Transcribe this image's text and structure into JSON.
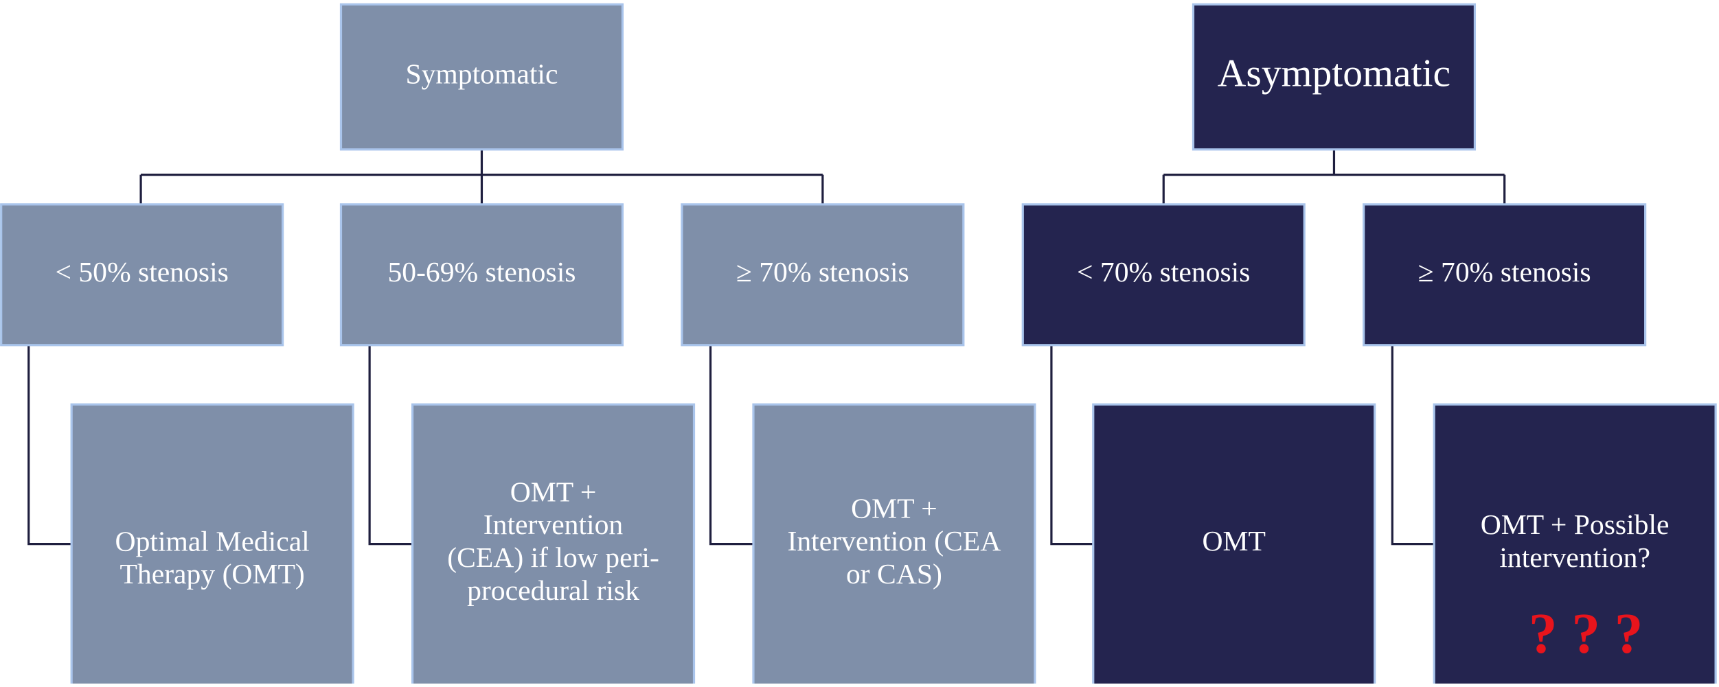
{
  "nodes": [
    {
      "lines": [
        "Symptomatic"
      ]
    },
    {
      "lines": [
        "Asymptomatic"
      ]
    },
    {
      "lines": [
        "< 50% stenosis"
      ]
    },
    {
      "lines": [
        "50-69% stenosis"
      ]
    },
    {
      "lines": [
        "≥ 70% stenosis"
      ]
    },
    {
      "lines": [
        "< 70% stenosis"
      ]
    },
    {
      "lines": [
        "≥ 70% stenosis"
      ]
    },
    {
      "lines": [
        "Optimal Medical",
        "Therapy (OMT)"
      ]
    },
    {
      "lines": [
        "OMT +",
        "Intervention",
        "(CEA) if low peri-",
        "procedural risk"
      ]
    },
    {
      "lines": [
        "OMT +",
        "Intervention (CEA",
        "or CAS)"
      ]
    },
    {
      "lines": [
        "OMT"
      ]
    },
    {
      "lines": [
        "OMT + Possible",
        "intervention?"
      ]
    }
  ],
  "annotation": "? ? ?"
}
